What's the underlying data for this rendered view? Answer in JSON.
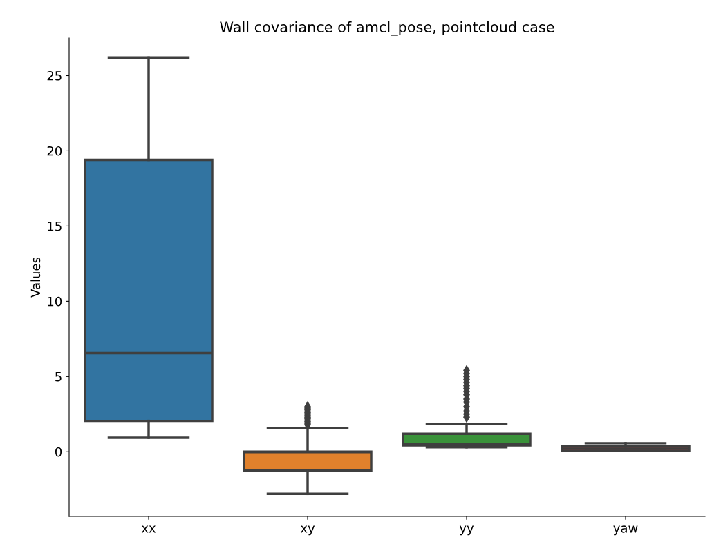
{
  "chart_data": {
    "type": "box",
    "title": "Wall covariance of amcl_pose, pointcloud case",
    "ylabel": "Values",
    "categories": [
      "xx",
      "xy",
      "yy",
      "yaw"
    ],
    "colors": [
      "#3274a1",
      "#e1812c",
      "#3a923a",
      "#c03d3e"
    ],
    "boxes": [
      {
        "low": 0.93,
        "q1": 2.05,
        "median": 6.55,
        "q3": 19.4,
        "high": 26.2
      },
      {
        "low": -2.8,
        "q1": -1.25,
        "median": -0.02,
        "q3": 0.0,
        "high": 1.58,
        "outliers": [
          1.8,
          1.9,
          2.0,
          2.1,
          2.2,
          2.3,
          2.4,
          2.5,
          2.6,
          2.7,
          2.8,
          2.9,
          3.0
        ]
      },
      {
        "low": 0.3,
        "q1": 0.43,
        "median": 0.5,
        "q3": 1.2,
        "high": 1.85,
        "outliers": [
          2.3,
          2.5,
          2.7,
          3.0,
          3.3,
          3.5,
          3.8,
          4.0,
          4.2,
          4.4,
          4.6,
          4.8,
          5.0,
          5.2,
          5.4
        ]
      },
      {
        "low": 0.05,
        "q1": 0.05,
        "median": 0.2,
        "q3": 0.35,
        "high": 0.57
      }
    ],
    "ylim": [
      -4.3,
      27.5
    ],
    "yticks": [
      0,
      5,
      10,
      15,
      20,
      25
    ],
    "grid": false,
    "legend": false
  }
}
